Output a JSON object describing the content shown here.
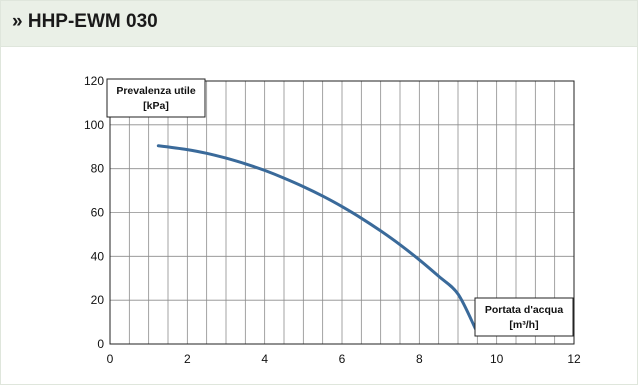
{
  "header": {
    "title": "» HHP-EWM 030"
  },
  "chart_data": {
    "type": "line",
    "title": "",
    "ylabel_line1": "Prevalenza utile",
    "ylabel_line2": "[kPa]",
    "xlabel_line1": "Portata d'acqua",
    "xlabel_line2": "[m³/h]",
    "xlim": [
      0,
      12
    ],
    "ylim": [
      0,
      120
    ],
    "x_ticks": [
      0,
      2,
      4,
      6,
      8,
      10,
      12
    ],
    "y_ticks": [
      0,
      20,
      40,
      60,
      80,
      100,
      120
    ],
    "x_tick_labels": [
      "0",
      "2",
      "4",
      "6",
      "8",
      "10",
      "12"
    ],
    "y_tick_labels": [
      "0",
      "20",
      "40",
      "60",
      "80",
      "100",
      "120"
    ],
    "grid": true,
    "minor_x_step": 0.5,
    "series": [
      {
        "color": "#3a6a9a",
        "x": [
          1.25,
          2.0,
          2.5,
          3.0,
          3.5,
          4.0,
          4.5,
          5.0,
          5.5,
          6.0,
          6.5,
          7.0,
          7.5,
          8.0,
          8.5,
          9.0,
          9.45
        ],
        "y": [
          90.5,
          88.7,
          87.0,
          84.8,
          82.2,
          79.2,
          75.7,
          71.8,
          67.5,
          62.7,
          57.4,
          51.6,
          45.3,
          38.4,
          30.9,
          22.8,
          7.0
        ]
      }
    ]
  }
}
